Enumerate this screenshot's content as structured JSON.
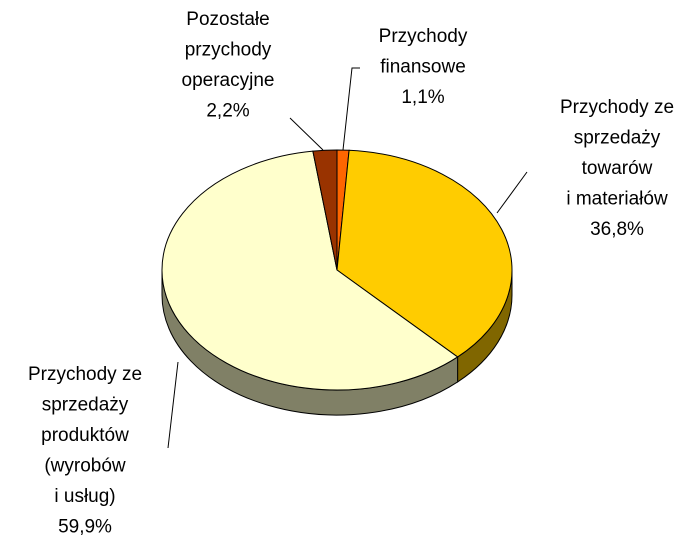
{
  "chart_data": {
    "type": "pie",
    "categories": [
      [
        "Przychody",
        "finansowe"
      ],
      [
        "Przychody ze",
        "sprzedaży",
        "towarów",
        "i materiałów"
      ],
      [
        "Przychody ze",
        "sprzedaży",
        "produktów",
        "(wyrobów",
        "i usług)"
      ],
      [
        "Pozostałe",
        "przychody",
        "operacyjne"
      ]
    ],
    "values": [
      1.1,
      36.8,
      59.9,
      2.2
    ],
    "value_labels": [
      "1,1%",
      "36,8%",
      "59,9%",
      "2,2%"
    ],
    "colors": [
      "#ff6600",
      "#ffcc00",
      "#ffffcc",
      "#993300"
    ]
  }
}
